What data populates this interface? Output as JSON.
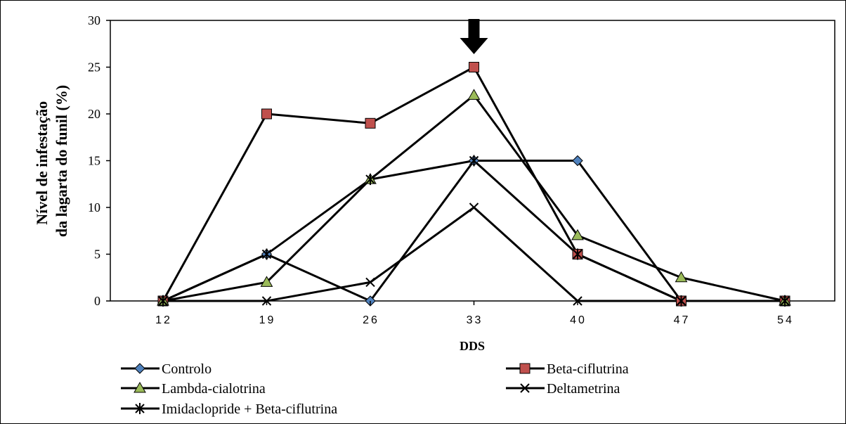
{
  "chart_data": {
    "type": "line",
    "title": "",
    "xlabel": "DDS",
    "ylabel_lines": [
      "Nível de infestação",
      "da lagarta do funil (%)"
    ],
    "categories": [
      "12",
      "19",
      "26",
      "33",
      "40",
      "47",
      "54"
    ],
    "ylim": [
      0,
      30
    ],
    "yticks": [
      0,
      5,
      10,
      15,
      20,
      25,
      30
    ],
    "grid": false,
    "legend_position": "bottom",
    "annotation": {
      "type": "arrow-down",
      "category": "33",
      "color": "#000000"
    },
    "series": [
      {
        "name": "Controlo",
        "marker": "diamond",
        "marker_color": "#4f81bd",
        "line_color": "#000000",
        "values": [
          0,
          5,
          0,
          15,
          15,
          0,
          0
        ]
      },
      {
        "name": "Beta-ciflutrina",
        "marker": "square",
        "marker_color": "#c0504d",
        "line_color": "#000000",
        "values": [
          0,
          20,
          19,
          25,
          5,
          0,
          0
        ]
      },
      {
        "name": "Lambda-cialotrina",
        "marker": "triangle",
        "marker_color": "#9bbb59",
        "line_color": "#000000",
        "values": [
          0,
          2,
          13,
          22,
          7,
          2.5,
          0
        ]
      },
      {
        "name": "Deltametrina",
        "marker": "x",
        "marker_color": "#000000",
        "line_color": "#000000",
        "values": [
          0,
          0,
          2,
          10,
          0,
          0,
          0
        ]
      },
      {
        "name": "Imidaclopride + Beta-ciflutrina",
        "marker": "star",
        "marker_color": "#000000",
        "line_color": "#000000",
        "values": [
          0,
          5,
          13,
          15,
          5,
          0,
          0
        ]
      }
    ]
  }
}
